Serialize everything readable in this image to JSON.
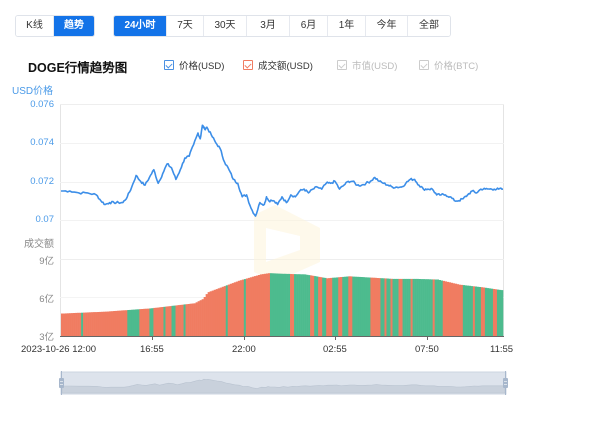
{
  "mode_tabs": [
    {
      "label": "K线",
      "active": false
    },
    {
      "label": "趋势",
      "active": true
    }
  ],
  "range_tabs": [
    {
      "label": "24小时",
      "active": true
    },
    {
      "label": "7天",
      "active": false
    },
    {
      "label": "30天",
      "active": false
    },
    {
      "label": "3月",
      "active": false
    },
    {
      "label": "6月",
      "active": false
    },
    {
      "label": "1年",
      "active": false
    },
    {
      "label": "今年",
      "active": false
    },
    {
      "label": "全部",
      "active": false
    }
  ],
  "legend": [
    {
      "label": "价格(USD)",
      "enabled": true,
      "color": "#4a90e2"
    },
    {
      "label": "成交额(USD)",
      "enabled": true,
      "color": "#f07c61"
    },
    {
      "label": "市值(USD)",
      "enabled": false,
      "color": "#cccccc"
    },
    {
      "label": "价格(BTC)",
      "enabled": false,
      "color": "#cccccc"
    }
  ],
  "colors": {
    "accent": "#1373e8",
    "price_line": "#3c8ee8",
    "axis_blue": "#4a9ae8",
    "volume_up": "#f07c61",
    "volume_down": "#4dbb8e",
    "grid": "#eeeeee",
    "slider_bg": "#dde3ec",
    "slider_fill": "#c9d1dc"
  },
  "chart_data": {
    "type": "line",
    "title": "DOGE行情趋势图",
    "price_axis": {
      "label": "USD价格",
      "ticks": [
        "0.076",
        "0.074",
        "0.072",
        "0.07"
      ],
      "ylim": [
        0.07,
        0.076
      ]
    },
    "volume_axis": {
      "label": "成交额",
      "ticks": [
        "9亿",
        "6亿",
        "3亿"
      ],
      "ylim": [
        300000000,
        900000000
      ]
    },
    "x_ticks": [
      "2023-10-26 12:00",
      "16:55",
      "22:00",
      "02:55",
      "07:50",
      "11:55"
    ],
    "series": [
      {
        "name": "价格(USD)",
        "type": "line",
        "x_fraction": [
          0.0,
          0.02,
          0.04,
          0.06,
          0.08,
          0.09,
          0.1,
          0.11,
          0.12,
          0.13,
          0.14,
          0.15,
          0.16,
          0.17,
          0.18,
          0.19,
          0.2,
          0.21,
          0.22,
          0.23,
          0.24,
          0.25,
          0.26,
          0.27,
          0.28,
          0.29,
          0.3,
          0.31,
          0.315,
          0.32,
          0.325,
          0.33,
          0.34,
          0.35,
          0.36,
          0.37,
          0.38,
          0.39,
          0.4,
          0.41,
          0.42,
          0.43,
          0.44,
          0.45,
          0.46,
          0.465,
          0.47,
          0.48,
          0.49,
          0.5,
          0.51,
          0.52,
          0.53,
          0.54,
          0.55,
          0.56,
          0.57,
          0.58,
          0.59,
          0.6,
          0.61,
          0.62,
          0.63,
          0.64,
          0.65,
          0.66,
          0.67,
          0.68,
          0.69,
          0.7,
          0.71,
          0.72,
          0.73,
          0.74,
          0.75,
          0.76,
          0.77,
          0.78,
          0.79,
          0.8,
          0.81,
          0.82,
          0.83,
          0.84,
          0.85,
          0.86,
          0.87,
          0.88,
          0.89,
          0.9,
          0.91,
          0.92,
          0.93,
          0.94,
          0.95,
          0.96,
          0.97,
          0.98,
          0.99,
          1.0
        ],
        "values": [
          0.0715,
          0.0715,
          0.0714,
          0.0714,
          0.0713,
          0.071,
          0.0708,
          0.0709,
          0.0709,
          0.0709,
          0.0709,
          0.0712,
          0.0717,
          0.0723,
          0.072,
          0.0718,
          0.0722,
          0.0726,
          0.0719,
          0.0724,
          0.0729,
          0.0727,
          0.0721,
          0.0726,
          0.0732,
          0.0733,
          0.0739,
          0.0745,
          0.0742,
          0.0749,
          0.0747,
          0.0748,
          0.0744,
          0.074,
          0.0737,
          0.073,
          0.0726,
          0.0721,
          0.0719,
          0.0712,
          0.0713,
          0.0706,
          0.0702,
          0.0709,
          0.0708,
          0.0712,
          0.071,
          0.071,
          0.0708,
          0.0712,
          0.0709,
          0.0713,
          0.0712,
          0.0715,
          0.0716,
          0.0714,
          0.0716,
          0.0717,
          0.0716,
          0.0719,
          0.0719,
          0.072,
          0.0716,
          0.0718,
          0.072,
          0.072,
          0.0718,
          0.0718,
          0.0719,
          0.072,
          0.0722,
          0.072,
          0.0719,
          0.0718,
          0.0717,
          0.0717,
          0.0717,
          0.0719,
          0.0721,
          0.0721,
          0.0718,
          0.0716,
          0.0716,
          0.0716,
          0.0713,
          0.0713,
          0.0713,
          0.0712,
          0.071,
          0.071,
          0.0711,
          0.0713,
          0.0715,
          0.0714,
          0.0716,
          0.0716,
          0.0716,
          0.0716,
          0.0716,
          0.0716
        ]
      },
      {
        "name": "成交额(USD)",
        "type": "bar",
        "note": "24h rolling volume, bars colored red (up) / green (down)",
        "x_fraction": [
          0.0,
          0.1,
          0.2,
          0.3,
          0.32,
          0.33,
          0.4,
          0.45,
          0.47,
          0.5,
          0.55,
          0.6,
          0.65,
          0.7,
          0.75,
          0.8,
          0.85,
          0.9,
          0.95,
          1.0
        ],
        "values": [
          475000000,
          490000000,
          515000000,
          555000000,
          590000000,
          640000000,
          730000000,
          780000000,
          790000000,
          785000000,
          780000000,
          750000000,
          765000000,
          755000000,
          745000000,
          745000000,
          740000000,
          700000000,
          680000000,
          655000000
        ]
      }
    ],
    "grid": true,
    "legend_position": "top"
  },
  "slider": {
    "start": 0,
    "end": 100
  }
}
